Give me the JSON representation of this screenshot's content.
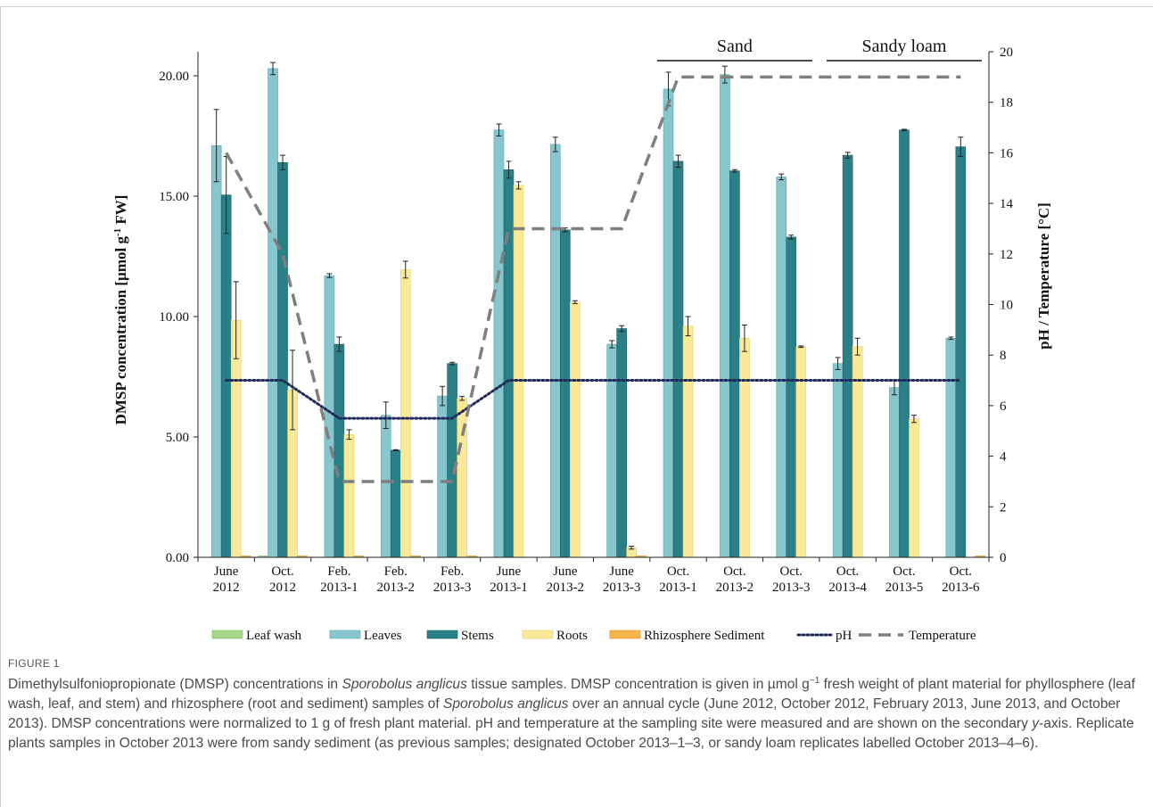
{
  "colors": {
    "leaf_wash": "#a6d68a",
    "leaves": "#86c6cc",
    "stems": "#2b7f86",
    "roots": "#fbe99a",
    "sediment": "#f6b64a",
    "ph": "#1f2a5a",
    "temperature": "#7f7f7f"
  },
  "chart_data": {
    "type": "bar",
    "ylabel": "DMSP concentration [µmol g-1 FW]",
    "ylabel_parts": {
      "pre": "DMSP concentration [µmol g",
      "sup": "-1",
      "post": " FW]"
    },
    "y2label": "pH / Temperature [°C]",
    "ylim": [
      0,
      20
    ],
    "y_ticks": [
      "0.00",
      "5.00",
      "10.00",
      "15.00",
      "20.00"
    ],
    "y2lim": [
      0,
      20
    ],
    "y2_ticks": [
      "0",
      "2",
      "4",
      "6",
      "8",
      "10",
      "12",
      "14",
      "16",
      "18",
      "20"
    ],
    "categories": [
      [
        "June",
        "2012"
      ],
      [
        "Oct.",
        "2012"
      ],
      [
        "Feb.",
        "2013-1"
      ],
      [
        "Feb.",
        "2013-2"
      ],
      [
        "Feb.",
        "2013-3"
      ],
      [
        "June",
        "2013-1"
      ],
      [
        "June",
        "2013-2"
      ],
      [
        "June",
        "2013-3"
      ],
      [
        "Oct.",
        "2013-1"
      ],
      [
        "Oct.",
        "2013-2"
      ],
      [
        "Oct.",
        "2013-3"
      ],
      [
        "Oct.",
        "2013-4"
      ],
      [
        "Oct.",
        "2013-5"
      ],
      [
        "Oct.",
        "2013-6"
      ]
    ],
    "group_labels": [
      "Sand",
      "Sandy loam"
    ],
    "group_spans": [
      [
        8,
        10
      ],
      [
        11,
        13
      ]
    ],
    "legend": [
      "Leaf wash",
      "Leaves",
      "Stems",
      "Roots",
      "Rhizosphere Sediment",
      "pH",
      "Temperature"
    ],
    "legend_position": "bottom",
    "series": [
      {
        "name": "Leaf wash",
        "axis": "left",
        "values": [
          0,
          0.05,
          0,
          0,
          0,
          0,
          0,
          0,
          0,
          0,
          0,
          0,
          0,
          0
        ],
        "errors": [
          0,
          0,
          0,
          0,
          0,
          0,
          0,
          0,
          0,
          0,
          0,
          0,
          0,
          0
        ]
      },
      {
        "name": "Leaves",
        "axis": "left",
        "values": [
          17.1,
          20.3,
          11.7,
          5.9,
          6.7,
          17.75,
          17.15,
          8.85,
          19.45,
          20.05,
          15.8,
          8.05,
          7.05,
          9.1
        ],
        "errors": [
          1.5,
          0.25,
          0.08,
          0.55,
          0.4,
          0.25,
          0.3,
          0.15,
          0.7,
          0.35,
          0.12,
          0.25,
          0.3,
          0.05
        ]
      },
      {
        "name": "Stems",
        "axis": "left",
        "values": [
          15.05,
          16.4,
          8.85,
          4.45,
          8.05,
          16.1,
          13.6,
          9.5,
          16.45,
          16.05,
          13.3,
          16.7,
          17.75,
          17.05
        ],
        "errors": [
          1.6,
          0.3,
          0.3,
          0.02,
          0.05,
          0.35,
          0.08,
          0.12,
          0.25,
          0.05,
          0.08,
          0.12,
          0.03,
          0.4
        ]
      },
      {
        "name": "Roots",
        "axis": "left",
        "values": [
          9.85,
          6.95,
          5.1,
          11.95,
          6.6,
          15.45,
          10.6,
          0.4,
          9.6,
          9.1,
          8.75,
          8.75,
          5.75,
          0
        ],
        "errors": [
          1.6,
          1.65,
          0.2,
          0.35,
          0.08,
          0.15,
          0.06,
          0.06,
          0.4,
          0.55,
          0.03,
          0.35,
          0.15,
          0
        ]
      },
      {
        "name": "Rhizosphere Sediment",
        "axis": "left",
        "values": [
          0.05,
          0.05,
          0.05,
          0.05,
          0.05,
          0,
          0,
          0.05,
          0,
          0,
          0,
          0,
          0,
          0.05
        ],
        "errors": [
          0,
          0,
          0,
          0,
          0,
          0,
          0,
          0,
          0,
          0,
          0,
          0,
          0,
          0
        ]
      },
      {
        "name": "pH",
        "axis": "right",
        "type": "line",
        "values": [
          7,
          7,
          5.5,
          5.5,
          5.5,
          7,
          7,
          7,
          7,
          7,
          7,
          7,
          7,
          7
        ]
      },
      {
        "name": "Temperature",
        "axis": "right",
        "type": "line",
        "values": [
          16,
          12,
          3,
          3,
          3,
          13,
          13,
          13,
          19,
          19,
          19,
          19,
          19,
          19
        ]
      }
    ]
  },
  "caption": {
    "label": "FIGURE 1",
    "p1": "Dimethylsulfoniopropionate (DMSP) concentrations in ",
    "species1": "Sporobolus anglicus",
    "p2": " tissue samples. DMSP concentration is given in µmol g",
    "sup1": "−1",
    "p3": " fresh weight of plant material for phyllosphere (leaf wash, leaf, and stem) and rhizosphere (root and sediment) samples of ",
    "species2": "Sporobolus anglicus",
    "p4": " over an annual cycle (June 2012, October 2012, February 2013, June 2013, and October 2013). DMSP concentrations were normalized to 1 g of fresh plant material. pH and temperature at the sampling site were measured and are shown on the secondary ",
    "yaxis": "y",
    "p5": "-axis. Replicate plants samples in October 2013 were from sandy sediment (as previous samples; designated October 2013–1–3, or sandy loam replicates labelled October 2013–4–6)."
  }
}
